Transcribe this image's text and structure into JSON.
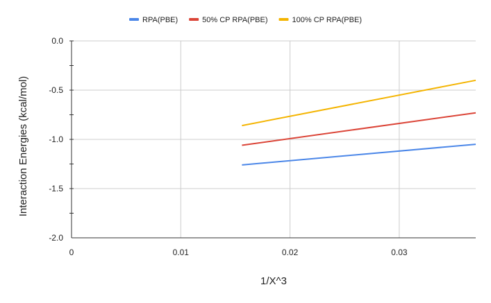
{
  "chart_data": {
    "type": "line",
    "xlabel": "1/X^3",
    "ylabel": "Interaction Energies (kcal/mol)",
    "xlim": [
      0,
      0.037
    ],
    "ylim": [
      -2.0,
      0.0
    ],
    "x_ticks": [
      0,
      0.01,
      0.02,
      0.03
    ],
    "x_tick_labels": [
      "0",
      "0.01",
      "0.02",
      "0.03"
    ],
    "y_ticks": [
      0.0,
      -0.5,
      -1.0,
      -1.5,
      -2.0
    ],
    "y_tick_labels": [
      "0.0",
      "-0.5",
      "-1.0",
      "-1.5",
      "-2.0"
    ],
    "grid": true,
    "legend_position": "top",
    "series": [
      {
        "name": "RPA(PBE)",
        "color": "#4a86e8",
        "x": [
          0.0156,
          0.037
        ],
        "values": [
          -1.26,
          -1.05
        ]
      },
      {
        "name": "50% CP RPA(PBE)",
        "color": "#db4437",
        "x": [
          0.0156,
          0.037
        ],
        "values": [
          -1.06,
          -0.73
        ]
      },
      {
        "name": "100% CP RPA(PBE)",
        "color": "#f4b400",
        "x": [
          0.0156,
          0.037
        ],
        "values": [
          -0.86,
          -0.4
        ]
      }
    ]
  }
}
